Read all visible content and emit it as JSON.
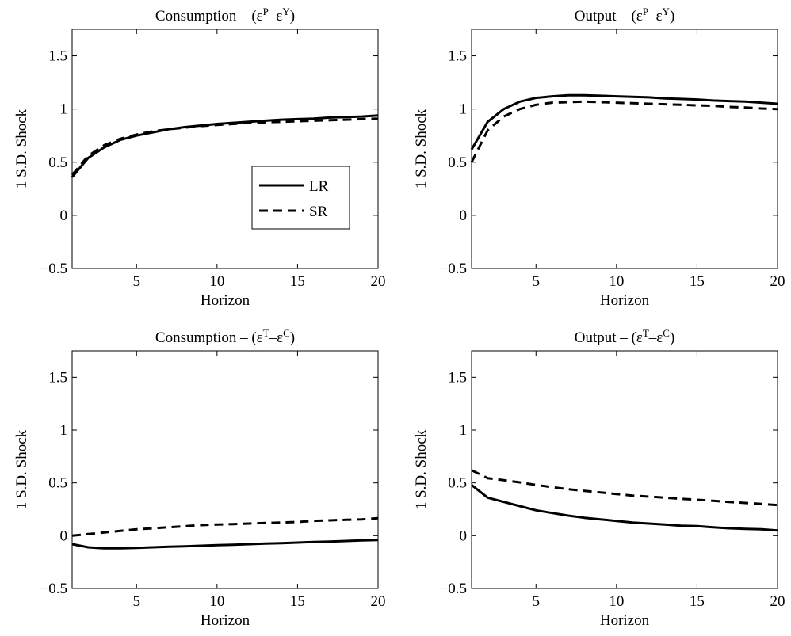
{
  "chart_data": [
    {
      "type": "line",
      "title": "Consumption – (ε^P–ε^Y)",
      "title_parts": {
        "prefix": "Consumption – (",
        "sym1": "ε",
        "sup1": "P",
        "dash": "–",
        "sym2": "ε",
        "sup2": "Y",
        "suffix": ")"
      },
      "xlabel": "Horizon",
      "ylabel": "1 S.D. Shock",
      "xlim": [
        1,
        20
      ],
      "ylim": [
        -0.5,
        1.75
      ],
      "xticks": [
        5,
        10,
        15,
        20
      ],
      "yticks": [
        -0.5,
        0,
        0.5,
        1,
        1.5
      ],
      "grid": false,
      "legend": {
        "placement": "center-right",
        "entries": [
          "LR",
          "SR"
        ]
      },
      "x": [
        1,
        2,
        3,
        4,
        5,
        6,
        7,
        8,
        9,
        10,
        11,
        12,
        13,
        14,
        15,
        16,
        17,
        18,
        19,
        20
      ],
      "series": [
        {
          "name": "LR",
          "style": "solid",
          "values": [
            0.36,
            0.54,
            0.64,
            0.71,
            0.75,
            0.78,
            0.81,
            0.83,
            0.845,
            0.86,
            0.87,
            0.88,
            0.89,
            0.9,
            0.905,
            0.91,
            0.92,
            0.925,
            0.93,
            0.94
          ]
        },
        {
          "name": "SR",
          "style": "dashed",
          "values": [
            0.38,
            0.56,
            0.66,
            0.72,
            0.76,
            0.79,
            0.81,
            0.825,
            0.84,
            0.85,
            0.86,
            0.87,
            0.875,
            0.88,
            0.885,
            0.89,
            0.895,
            0.9,
            0.905,
            0.91
          ]
        }
      ]
    },
    {
      "type": "line",
      "title": "Output – (ε^P–ε^Y)",
      "title_parts": {
        "prefix": "Output – (",
        "sym1": "ε",
        "sup1": "P",
        "dash": "–",
        "sym2": "ε",
        "sup2": "Y",
        "suffix": ")"
      },
      "xlabel": "Horizon",
      "ylabel": "1 S.D. Shock",
      "xlim": [
        1,
        20
      ],
      "ylim": [
        -0.5,
        1.75
      ],
      "xticks": [
        5,
        10,
        15,
        20
      ],
      "yticks": [
        -0.5,
        0,
        0.5,
        1,
        1.5
      ],
      "grid": false,
      "x": [
        1,
        2,
        3,
        4,
        5,
        6,
        7,
        8,
        9,
        10,
        11,
        12,
        13,
        14,
        15,
        16,
        17,
        18,
        19,
        20
      ],
      "series": [
        {
          "style": "solid",
          "values": [
            0.62,
            0.88,
            1.0,
            1.07,
            1.105,
            1.12,
            1.13,
            1.13,
            1.125,
            1.12,
            1.115,
            1.11,
            1.1,
            1.095,
            1.09,
            1.08,
            1.075,
            1.07,
            1.06,
            1.05
          ]
        },
        {
          "style": "dashed",
          "values": [
            0.5,
            0.8,
            0.93,
            1.0,
            1.04,
            1.06,
            1.065,
            1.07,
            1.065,
            1.06,
            1.055,
            1.05,
            1.045,
            1.04,
            1.035,
            1.03,
            1.02,
            1.015,
            1.005,
            1.0
          ]
        }
      ]
    },
    {
      "type": "line",
      "title": "Consumption – (ε^T–ε^C)",
      "title_parts": {
        "prefix": "Consumption – (",
        "sym1": "ε",
        "sup1": "T",
        "dash": "–",
        "sym2": "ε",
        "sup2": "C",
        "suffix": ")"
      },
      "xlabel": "Horizon",
      "ylabel": "1 S.D. Shock",
      "xlim": [
        1,
        20
      ],
      "ylim": [
        -0.5,
        1.75
      ],
      "xticks": [
        5,
        10,
        15,
        20
      ],
      "yticks": [
        -0.5,
        0,
        0.5,
        1,
        1.5
      ],
      "grid": false,
      "x": [
        1,
        2,
        3,
        4,
        5,
        6,
        7,
        8,
        9,
        10,
        11,
        12,
        13,
        14,
        15,
        16,
        17,
        18,
        19,
        20
      ],
      "series": [
        {
          "style": "solid",
          "values": [
            -0.08,
            -0.11,
            -0.12,
            -0.12,
            -0.115,
            -0.11,
            -0.105,
            -0.1,
            -0.095,
            -0.09,
            -0.085,
            -0.08,
            -0.075,
            -0.07,
            -0.065,
            -0.06,
            -0.055,
            -0.05,
            -0.045,
            -0.04
          ]
        },
        {
          "style": "dashed",
          "values": [
            0.0,
            0.015,
            0.03,
            0.045,
            0.06,
            0.07,
            0.08,
            0.09,
            0.1,
            0.105,
            0.11,
            0.115,
            0.12,
            0.125,
            0.13,
            0.14,
            0.145,
            0.15,
            0.155,
            0.165
          ]
        }
      ]
    },
    {
      "type": "line",
      "title": "Output – (ε^T–ε^C)",
      "title_parts": {
        "prefix": "Output – (",
        "sym1": "ε",
        "sup1": "T",
        "dash": "–",
        "sym2": "ε",
        "sup2": "C",
        "suffix": ")"
      },
      "xlabel": "Horizon",
      "ylabel": "1 S.D. Shock",
      "xlim": [
        1,
        20
      ],
      "ylim": [
        -0.5,
        1.75
      ],
      "xticks": [
        5,
        10,
        15,
        20
      ],
      "yticks": [
        -0.5,
        0,
        0.5,
        1,
        1.5
      ],
      "grid": false,
      "x": [
        1,
        2,
        3,
        4,
        5,
        6,
        7,
        8,
        9,
        10,
        11,
        12,
        13,
        14,
        15,
        16,
        17,
        18,
        19,
        20
      ],
      "series": [
        {
          "style": "solid",
          "values": [
            0.48,
            0.36,
            0.32,
            0.28,
            0.24,
            0.215,
            0.19,
            0.17,
            0.155,
            0.14,
            0.125,
            0.115,
            0.105,
            0.095,
            0.09,
            0.08,
            0.07,
            0.065,
            0.06,
            0.05
          ]
        },
        {
          "style": "dashed",
          "values": [
            0.62,
            0.545,
            0.525,
            0.505,
            0.48,
            0.46,
            0.44,
            0.425,
            0.41,
            0.395,
            0.38,
            0.37,
            0.36,
            0.35,
            0.34,
            0.33,
            0.32,
            0.31,
            0.3,
            0.29
          ]
        }
      ]
    }
  ]
}
